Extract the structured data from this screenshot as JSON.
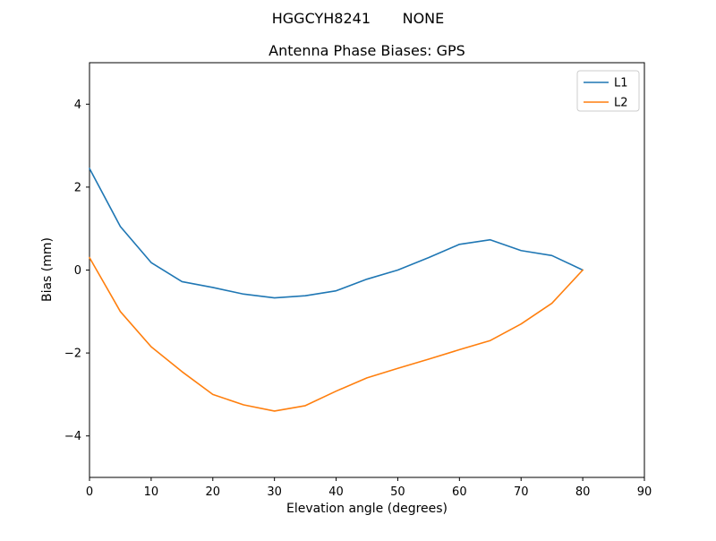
{
  "chart_data": {
    "type": "line",
    "suptitle": "HGGCYH8241       NONE",
    "title": "Antenna Phase Biases: GPS",
    "xlabel": "Elevation angle (degrees)",
    "ylabel": "Bias (mm)",
    "xlim": [
      0,
      90
    ],
    "ylim": [
      -5,
      5
    ],
    "xticks": [
      0,
      10,
      20,
      30,
      40,
      50,
      60,
      70,
      80,
      90
    ],
    "yticks": [
      -4,
      -2,
      0,
      2,
      4
    ],
    "grid": false,
    "legend_position": "upper right",
    "x": [
      0,
      5,
      10,
      15,
      20,
      25,
      30,
      35,
      40,
      45,
      50,
      55,
      60,
      65,
      70,
      75,
      80
    ],
    "series": [
      {
        "name": "L1",
        "color": "#1f77b4",
        "values": [
          2.45,
          1.05,
          0.18,
          -0.28,
          -0.42,
          -0.58,
          -0.67,
          -0.62,
          -0.5,
          -0.22,
          0.0,
          0.3,
          0.62,
          0.73,
          0.47,
          0.35,
          0.0
        ]
      },
      {
        "name": "L2",
        "color": "#ff7f0e",
        "values": [
          0.3,
          -1.0,
          -1.85,
          -2.45,
          -3.0,
          -3.25,
          -3.4,
          -3.27,
          -2.92,
          -2.6,
          -2.37,
          -2.15,
          -1.92,
          -1.7,
          -1.3,
          -0.8,
          0.0
        ]
      }
    ]
  }
}
